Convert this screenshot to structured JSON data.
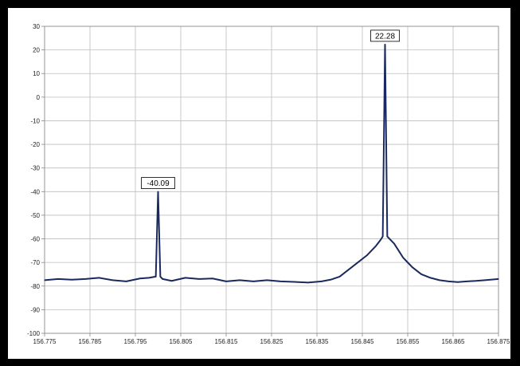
{
  "chart_data": {
    "type": "line",
    "title": "",
    "xlabel": "",
    "ylabel": "",
    "xlim": [
      156.775,
      156.875
    ],
    "ylim": [
      -100,
      30
    ],
    "x_ticks": [
      "156.775",
      "156.785",
      "156.795",
      "156.805",
      "156.815",
      "156.825",
      "156.835",
      "156.845",
      "156.855",
      "156.865",
      "156.875"
    ],
    "y_ticks": [
      "30",
      "20",
      "10",
      "0",
      "-10",
      "-20",
      "-30",
      "-40",
      "-50",
      "-60",
      "-70",
      "-80",
      "-90",
      "-100"
    ],
    "grid": true,
    "line_color": "#1a2a5e",
    "series": [
      {
        "name": "",
        "x": [
          156.775,
          156.778,
          156.781,
          156.784,
          156.787,
          156.79,
          156.793,
          156.796,
          156.798,
          156.7995,
          156.8,
          156.8005,
          156.801,
          156.803,
          156.806,
          156.809,
          156.812,
          156.815,
          156.818,
          156.821,
          156.824,
          156.827,
          156.83,
          156.833,
          156.836,
          156.838,
          156.84,
          156.842,
          156.844,
          156.846,
          156.848,
          156.849,
          156.8495,
          156.85,
          156.8505,
          156.851,
          156.852,
          156.853,
          156.854,
          156.856,
          156.858,
          156.86,
          156.862,
          156.864,
          156.866,
          156.868,
          156.87,
          156.872,
          156.875
        ],
        "y": [
          -77.5,
          -77,
          -77.3,
          -77,
          -76.5,
          -77.5,
          -78,
          -76.8,
          -76.5,
          -76,
          -40.09,
          -76,
          -77,
          -77.8,
          -76.5,
          -77,
          -76.8,
          -78,
          -77.5,
          -78,
          -77.5,
          -78,
          -78.2,
          -78.5,
          -78,
          -77.3,
          -76,
          -73,
          -70,
          -67,
          -63,
          -60.5,
          -59,
          22.28,
          -59,
          -60,
          -62,
          -65,
          -68,
          -72,
          -75,
          -76.5,
          -77.5,
          -78,
          -78.3,
          -78,
          -77.8,
          -77.5,
          -77
        ]
      }
    ],
    "annotations": [
      {
        "text": "-40.09",
        "x": 156.8,
        "y": -40.09
      },
      {
        "text": "22.28",
        "x": 156.85,
        "y": 22.28
      }
    ]
  }
}
